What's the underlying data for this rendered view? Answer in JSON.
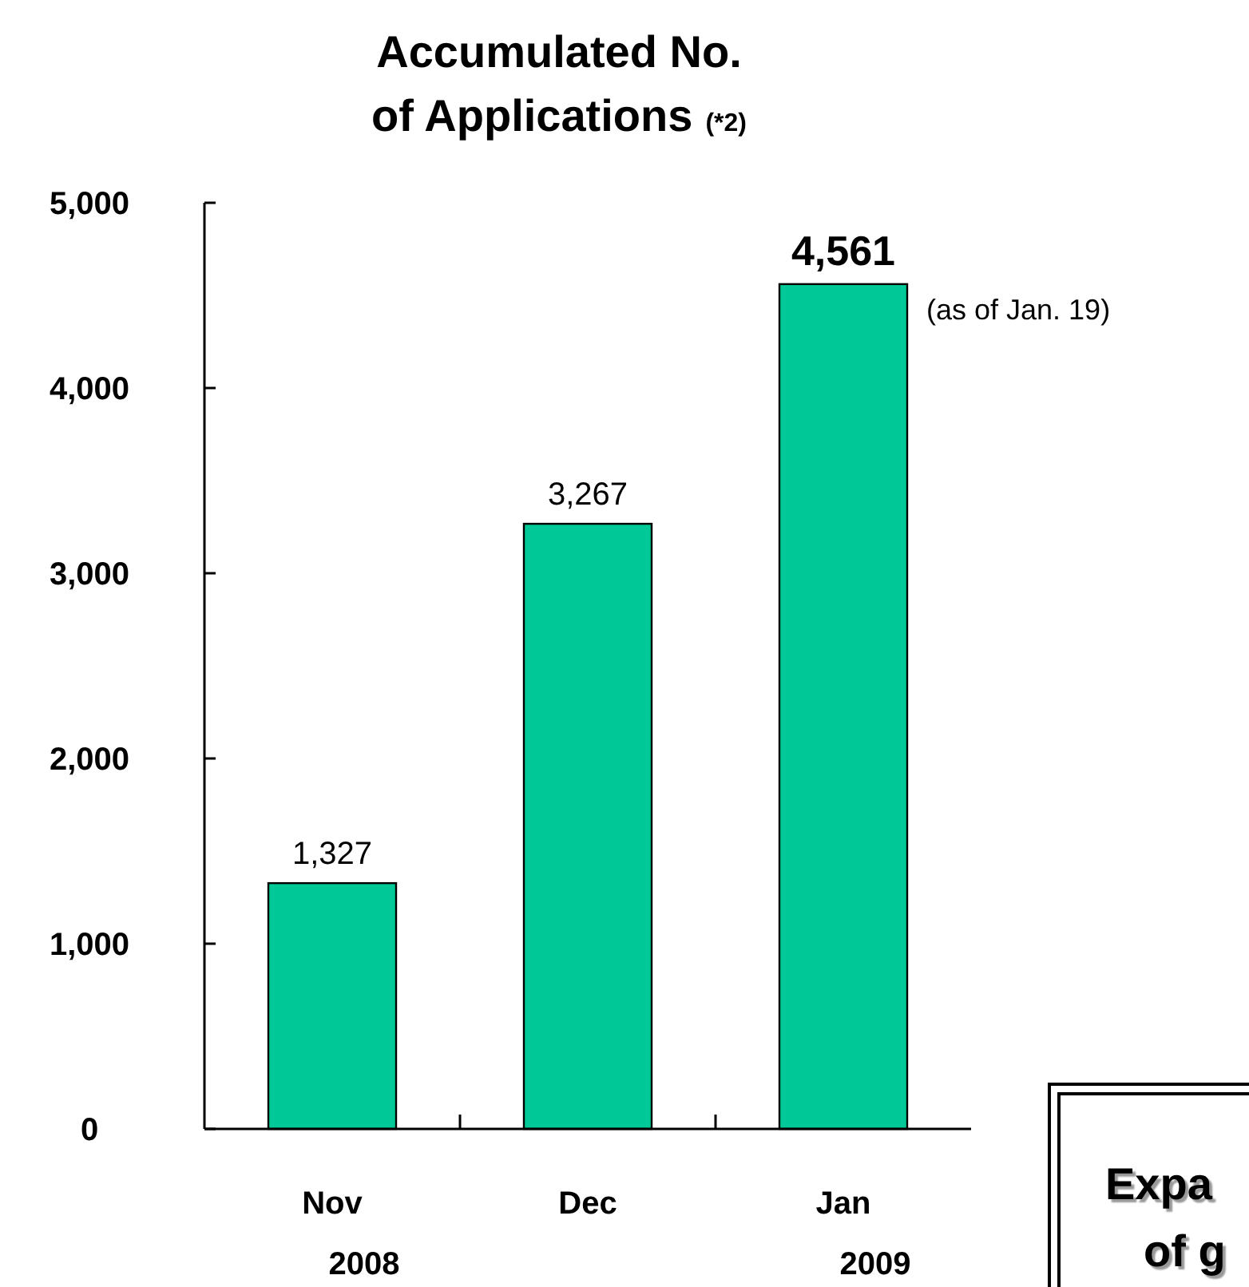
{
  "chart_data": {
    "type": "bar",
    "title": "Accumulated No. of Applications (*2)",
    "categories": [
      "Nov 2008",
      "Dec",
      "Jan 2009"
    ],
    "values": [
      1327,
      3267,
      4561
    ],
    "color": "#00c896",
    "ylim": [
      0,
      5000
    ],
    "yticks": [
      {
        "value": 0,
        "label": "0"
      },
      {
        "value": 1000,
        "label": "1,000"
      },
      {
        "value": 2000,
        "label": "2,000"
      },
      {
        "value": 3000,
        "label": "3,000"
      },
      {
        "value": 4000,
        "label": "4,000"
      },
      {
        "value": 5000,
        "label": "5,000"
      }
    ],
    "value_labels": [
      "1,327",
      "3,267",
      "4,561"
    ],
    "grid": false,
    "annotations": [
      {
        "text": "(as of Jan. 19)",
        "x": "Jan 2009",
        "y": 4561
      },
      "Expa",
      "of g"
    ]
  }
}
